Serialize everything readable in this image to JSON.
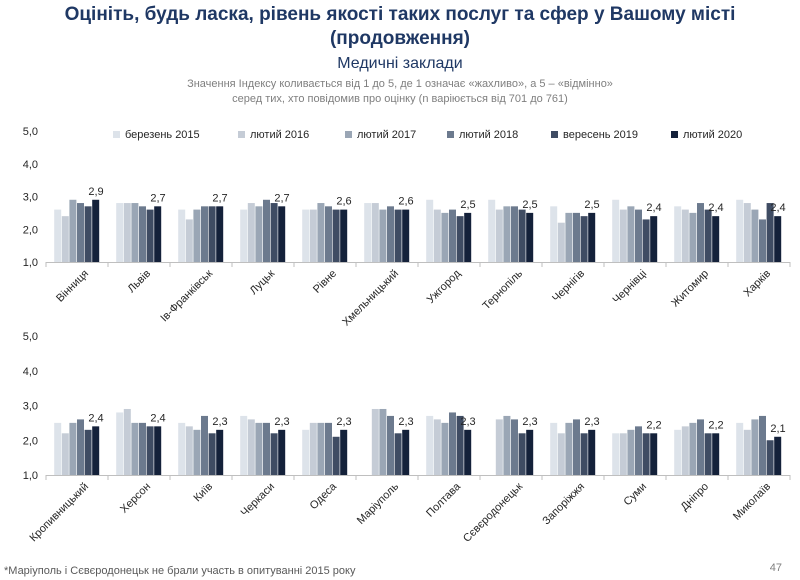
{
  "title_line1": "Оцініть, будь ласка, рівень якості таких послуг та сфер у Вашому місті",
  "title_line2": "(продовження)",
  "subtitle": "Медичні заклади",
  "note_line1": "Значення Індексу коливається від 1 до 5, де 1 означає «жахливо», а 5 – «відмінно»",
  "note_line2": "серед тих, хто повідомив про оцінку (n варіюється від 701 до 761)",
  "footnote": "*Маріуполь і Сєвєродонецьк не брали участь в опитуванні 2015 року",
  "page_number": "47",
  "chart_data": {
    "type": "bar",
    "ylim": [
      1,
      5
    ],
    "yticks": [
      "1,0",
      "2,0",
      "3,0",
      "4,0",
      "5,0"
    ],
    "legend": [
      "березень 2015",
      "лютий 2016",
      "лютий 2017",
      "лютий 2018",
      "вересень 2019",
      "лютий 2020"
    ],
    "colors": [
      "#dde3ea",
      "#c5ccd6",
      "#9aa6b5",
      "#6c7a8e",
      "#3f4c63",
      "#14213a"
    ],
    "panels": [
      {
        "categories": [
          "Вінниця",
          "Львів",
          "Ів-Франківськ",
          "Луцьк",
          "Рівне",
          "Хмельницький",
          "Ужгород",
          "Тернопіль",
          "Чернігів",
          "Чернівці",
          "Житомир",
          "Харків"
        ],
        "series": [
          [
            2.6,
            2.8,
            2.6,
            2.6,
            2.6,
            2.8,
            2.9,
            2.9,
            2.7,
            2.9,
            2.7,
            2.9
          ],
          [
            2.4,
            2.8,
            2.3,
            2.8,
            2.6,
            2.8,
            2.6,
            2.6,
            2.2,
            2.6,
            2.6,
            2.8
          ],
          [
            2.9,
            2.8,
            2.6,
            2.7,
            2.8,
            2.6,
            2.5,
            2.7,
            2.5,
            2.7,
            2.5,
            2.6
          ],
          [
            2.8,
            2.7,
            2.7,
            2.9,
            2.7,
            2.7,
            2.6,
            2.7,
            2.5,
            2.6,
            2.8,
            2.3
          ],
          [
            2.7,
            2.6,
            2.7,
            2.8,
            2.6,
            2.6,
            2.4,
            2.6,
            2.4,
            2.3,
            2.6,
            2.8
          ],
          [
            2.9,
            2.7,
            2.7,
            2.7,
            2.6,
            2.6,
            2.5,
            2.5,
            2.5,
            2.4,
            2.4,
            2.4
          ]
        ],
        "labels": [
          "2,9",
          "2,7",
          "2,7",
          "2,7",
          "2,6",
          "2,6",
          "2,5",
          "2,5",
          "2,5",
          "2,4",
          "2,4",
          "2,4"
        ]
      },
      {
        "categories": [
          "Кропивницький",
          "Херсон",
          "Київ",
          "Черкаси",
          "Одеса",
          "Маріуполь",
          "Полтава",
          "Сєвєродонецьк",
          "Запоріжжя",
          "Суми",
          "Дніпро",
          "Миколаїв"
        ],
        "series": [
          [
            2.5,
            2.8,
            2.5,
            2.7,
            2.3,
            null,
            2.7,
            null,
            2.5,
            2.2,
            2.3,
            2.5
          ],
          [
            2.2,
            2.9,
            2.4,
            2.6,
            2.5,
            2.9,
            2.6,
            2.6,
            2.2,
            2.2,
            2.4,
            2.3
          ],
          [
            2.5,
            2.5,
            2.3,
            2.5,
            2.5,
            2.9,
            2.5,
            2.7,
            2.5,
            2.3,
            2.5,
            2.6
          ],
          [
            2.6,
            2.5,
            2.7,
            2.5,
            2.5,
            2.7,
            2.8,
            2.6,
            2.6,
            2.4,
            2.6,
            2.7
          ],
          [
            2.3,
            2.4,
            2.2,
            2.2,
            2.1,
            2.2,
            2.7,
            2.2,
            2.2,
            2.2,
            2.2,
            2.0
          ],
          [
            2.4,
            2.4,
            2.3,
            2.3,
            2.3,
            2.3,
            2.3,
            2.3,
            2.3,
            2.2,
            2.2,
            2.1
          ]
        ],
        "labels": [
          "2,4",
          "2,4",
          "2,3",
          "2,3",
          "2,3",
          "2,3",
          "2,3",
          "2,3",
          "2,3",
          "2,2",
          "2,2",
          "2,1"
        ]
      }
    ]
  }
}
